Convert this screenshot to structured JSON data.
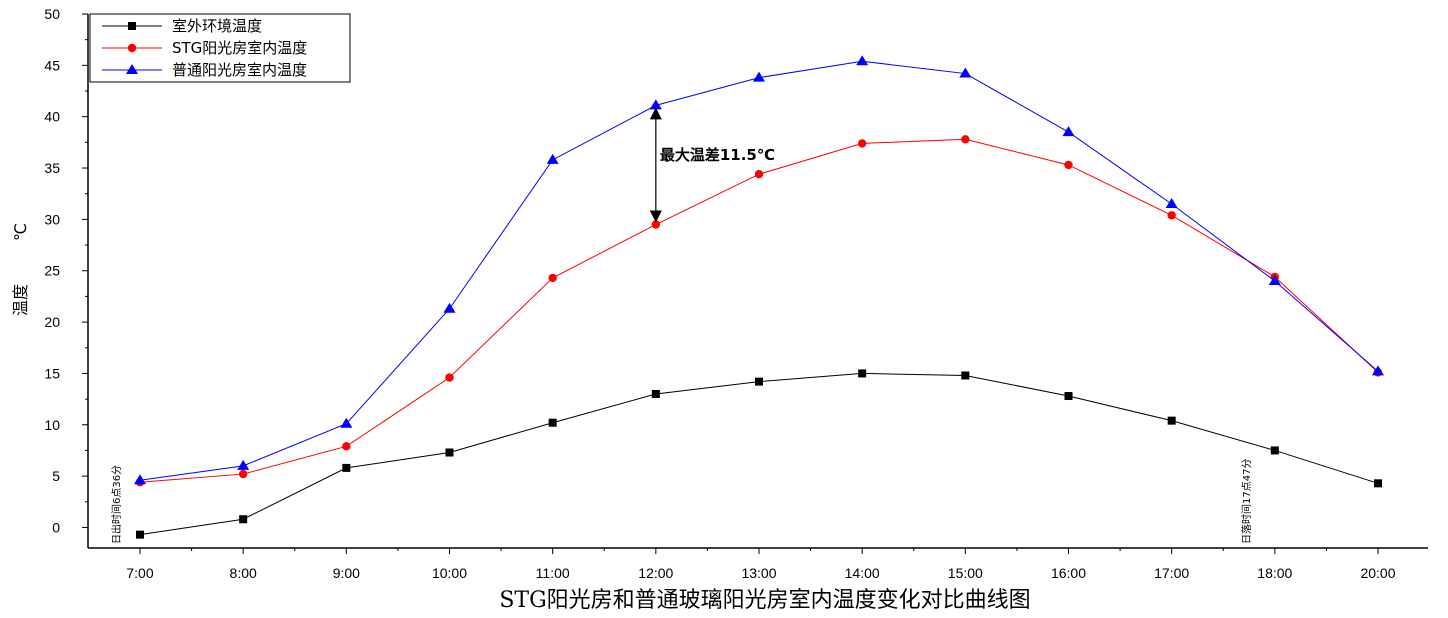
{
  "chart_data": {
    "type": "line",
    "title": "STG阳光房和普通玻璃阳光房室内温度变化对比曲线图",
    "ylabel_name": "温度",
    "ylabel_unit": "℃",
    "xlabel": "",
    "categories": [
      "7:00",
      "8:00",
      "9:00",
      "10:00",
      "11:00",
      "12:00",
      "13:00",
      "14:00",
      "15:00",
      "16:00",
      "17:00",
      "18:00",
      "20:00"
    ],
    "ylim": [
      -2,
      50
    ],
    "yticks": [
      0,
      5,
      10,
      15,
      20,
      25,
      30,
      35,
      40,
      45,
      50
    ],
    "grid": false,
    "legend_position": "top-left",
    "series": [
      {
        "name": "室外环境温度",
        "color": "#000000",
        "marker": "square",
        "values": [
          -0.7,
          0.8,
          5.8,
          7.3,
          10.2,
          13.0,
          14.2,
          15.0,
          14.8,
          12.8,
          10.4,
          7.5,
          4.3
        ]
      },
      {
        "name": "STG阳光房室内温度",
        "color": "#ff0000",
        "marker": "circle",
        "values": [
          4.4,
          5.2,
          7.9,
          14.6,
          24.3,
          29.5,
          34.4,
          37.4,
          37.8,
          35.3,
          30.4,
          24.4,
          15.1
        ]
      },
      {
        "name": "普通阳光房室内温度",
        "color": "#0000ff",
        "marker": "triangle",
        "values": [
          4.6,
          6.0,
          10.1,
          21.3,
          35.8,
          41.1,
          43.8,
          45.4,
          44.2,
          38.5,
          31.5,
          24.0,
          15.2
        ]
      }
    ],
    "annotations": {
      "max_diff_label": "最大温差11.5℃",
      "max_diff_category": "12:00",
      "max_diff_from": 41.1,
      "max_diff_to": 29.5,
      "sunrise_label": "日出时间6点36分",
      "sunrise_category": "7:00",
      "sunset_label": "日落时间17点47分",
      "sunset_category": "18:00"
    }
  }
}
